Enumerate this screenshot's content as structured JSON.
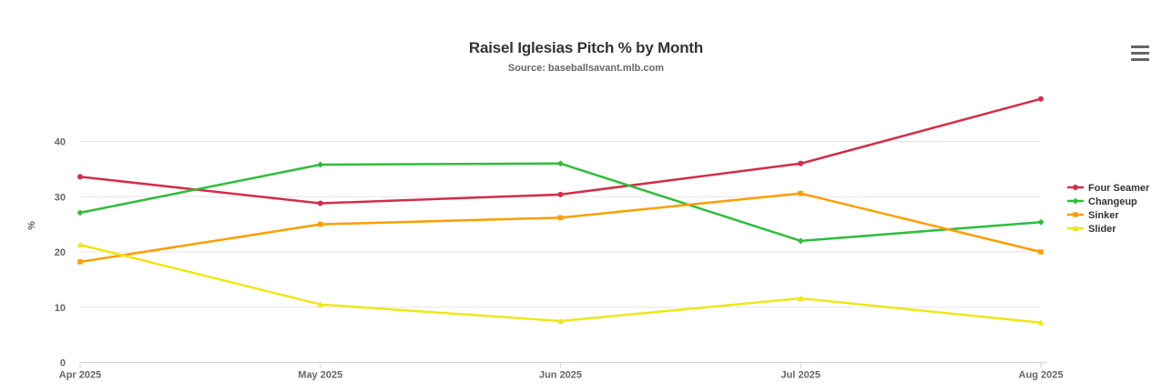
{
  "header": {
    "title": "Raisel Iglesias Pitch % by Month",
    "subtitle": "Source: baseballsavant.mlb.com"
  },
  "icons": {
    "menu": "hamburger-icon"
  },
  "chart_data": {
    "type": "line",
    "title": "Raisel Iglesias Pitch % by Month",
    "subtitle": "Source: baseballsavant.mlb.com",
    "categories": [
      "Apr 2025",
      "May 2025",
      "Jun 2025",
      "Jul 2025",
      "Aug 2025"
    ],
    "series": [
      {
        "name": "Four Seamer",
        "color": "#D22D49",
        "marker": "circle",
        "values": [
          33.6,
          28.8,
          30.4,
          36.0,
          47.7
        ]
      },
      {
        "name": "Changeup",
        "color": "#2DBE3A",
        "marker": "diamond",
        "values": [
          27.1,
          35.8,
          36.0,
          22.0,
          25.4
        ]
      },
      {
        "name": "Sinker",
        "color": "#FE9D00",
        "marker": "square",
        "values": [
          18.2,
          25.0,
          26.2,
          30.6,
          20.0
        ]
      },
      {
        "name": "Slider",
        "color": "#EEE716",
        "marker": "triangle",
        "values": [
          21.3,
          10.5,
          7.5,
          11.6,
          7.2
        ]
      }
    ],
    "xlabel": "",
    "ylabel": "%",
    "yticks": [
      0,
      10,
      20,
      30,
      40
    ],
    "ylim": [
      0,
      48
    ],
    "grid": "horizontal",
    "legend_position": "right",
    "axis_line_color": "#ccd6eb",
    "grid_color": "#e6e6e6",
    "axis_label_color": "#666666"
  }
}
